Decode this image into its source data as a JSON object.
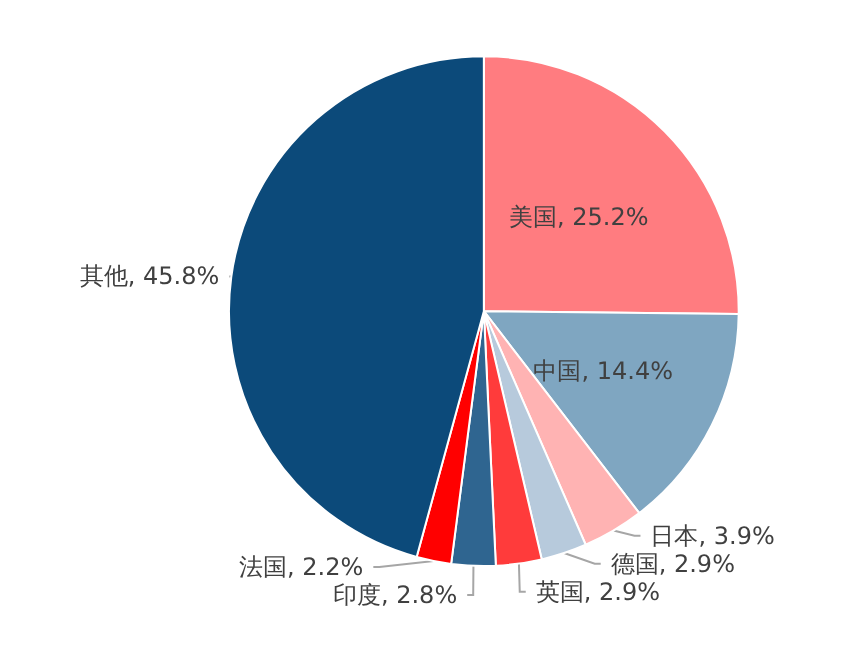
{
  "chart_data": {
    "type": "pie",
    "categories": [
      "美国",
      "中国",
      "日本",
      "德国",
      "英国",
      "印度",
      "法国",
      "其他"
    ],
    "values": [
      25.2,
      14.4,
      3.9,
      2.9,
      2.9,
      2.8,
      2.2,
      45.8
    ],
    "colors": [
      "#ff7c80",
      "#7fa6c1",
      "#ffb3b3",
      "#b7cadc",
      "#ff3b3b",
      "#2f6590",
      "#ff0000",
      "#0c4a7a"
    ],
    "value_labels": [
      ", 25.2%",
      ", 14.4%",
      ", 3.9%",
      ", 2.9%",
      ", 2.9%",
      ", 2.8%",
      ", 2.2%",
      ", 45.8%"
    ]
  }
}
